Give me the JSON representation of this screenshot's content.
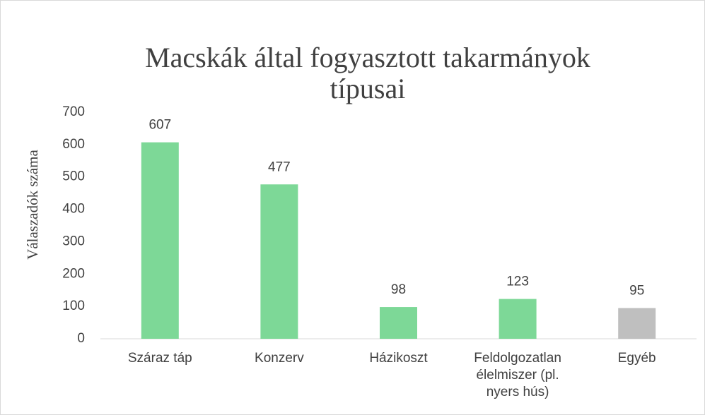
{
  "chart_data": {
    "type": "bar",
    "title": "Macskák által fogyasztott takarmányok típusai",
    "y_label": "Válaszadók száma",
    "categories": [
      "Száraz táp",
      "Konzerv",
      "Házikoszt",
      "Feldolgozatlan élelmiszer (pl. nyers hús)",
      "Egyéb"
    ],
    "values": [
      607,
      477,
      98,
      123,
      95
    ],
    "colors": [
      "#7dd897",
      "#7dd897",
      "#7dd897",
      "#7dd897",
      "#bfbfbf"
    ],
    "ylim": [
      0,
      700
    ],
    "yticks": [
      0,
      100,
      200,
      300,
      400,
      500,
      600,
      700
    ],
    "grid": false
  }
}
